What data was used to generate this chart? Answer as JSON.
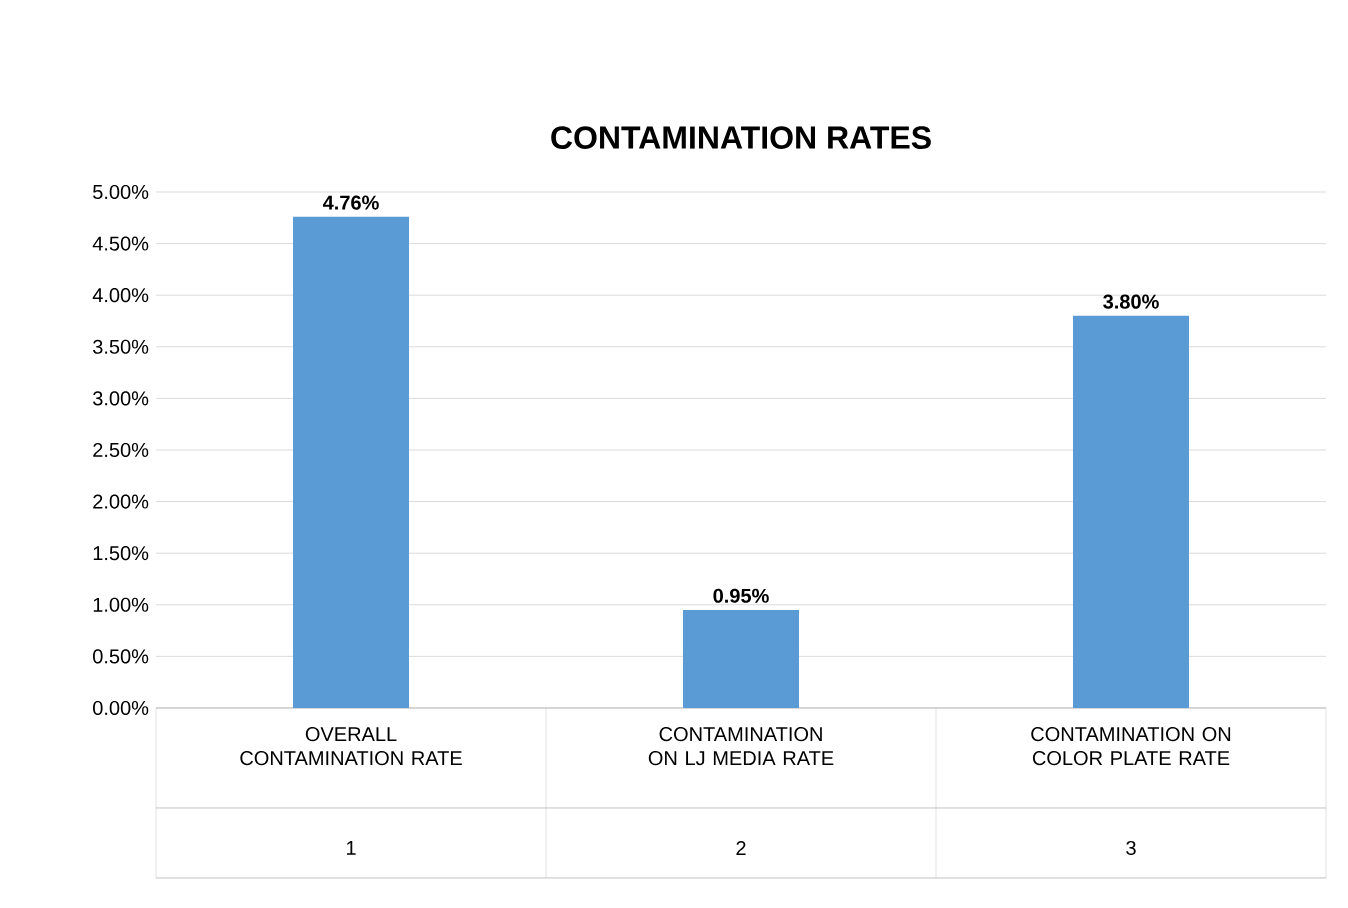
{
  "chart_data": {
    "type": "bar",
    "title": "CONTAMINATION RATES",
    "categories": [
      "OVERALL CONTAMINATION RATE",
      "CONTAMINATION ON LJ MEDIA RATE",
      "CONTAMINATION ON COLOR PLATE RATE"
    ],
    "values": [
      4.76,
      0.95,
      3.8
    ],
    "value_labels": [
      "4.76%",
      "0.95%",
      "3.80%"
    ],
    "color": "#5b9bd5",
    "annotations": [
      "1",
      "2",
      "3"
    ],
    "ylim": [
      0,
      5
    ],
    "yticks": [
      {
        "value": 0,
        "label": "0.00%"
      },
      {
        "value": 0.5,
        "label": "0.50%"
      },
      {
        "value": 1,
        "label": "1.00%"
      },
      {
        "value": 1.5,
        "label": "1.50%"
      },
      {
        "value": 2,
        "label": "2.00%"
      },
      {
        "value": 2.5,
        "label": "2.50%"
      },
      {
        "value": 3,
        "label": "3.00%"
      },
      {
        "value": 3.5,
        "label": "3.50%"
      },
      {
        "value": 4,
        "label": "4.00%"
      },
      {
        "value": 4.5,
        "label": "4.50%"
      },
      {
        "value": 5,
        "label": "5.00%"
      }
    ],
    "grid": "y"
  }
}
